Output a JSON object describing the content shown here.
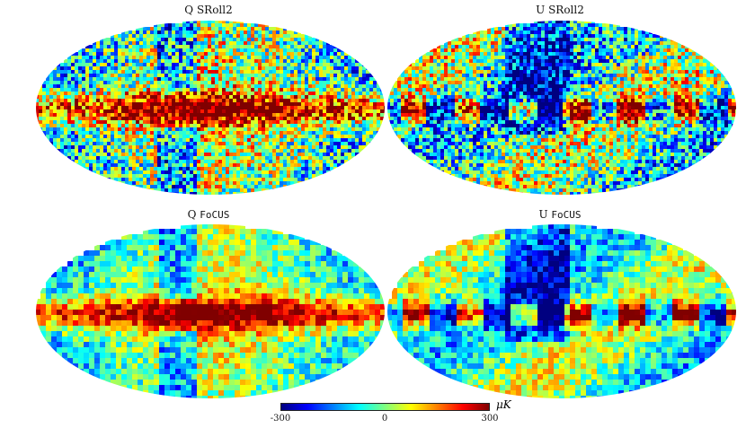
{
  "panels": [
    {
      "prefix": "Q",
      "name": "SRoll2",
      "mono": false,
      "dataset": "sroll2",
      "stokes": "Q"
    },
    {
      "prefix": "U",
      "name": "SRoll2",
      "mono": false,
      "dataset": "sroll2",
      "stokes": "U"
    },
    {
      "prefix": "Q",
      "name": "FoCUS",
      "mono": true,
      "dataset": "focus",
      "stokes": "Q"
    },
    {
      "prefix": "U",
      "name": "FoCUS",
      "mono": true,
      "dataset": "focus",
      "stokes": "U"
    }
  ],
  "colorbar": {
    "min_label": "-300",
    "mid_label": "0",
    "max_label": "300",
    "unit": "μK",
    "colormap": "jet",
    "colors": [
      "#00007f",
      "#0000ff",
      "#007fff",
      "#00ffff",
      "#7fff7f",
      "#ffff00",
      "#ff7f00",
      "#ff0000",
      "#7f0000"
    ]
  }
}
